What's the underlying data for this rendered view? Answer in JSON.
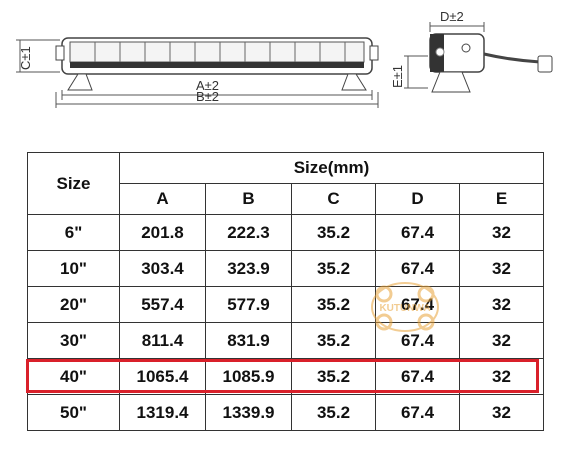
{
  "drawing": {
    "labels": {
      "a": "A±2",
      "b": "B±2",
      "c": "C±1",
      "d": "D±2",
      "e": "E±1"
    }
  },
  "table": {
    "size_header": "Size",
    "group_header": "Size(mm)",
    "columns": [
      "A",
      "B",
      "C",
      "D",
      "E"
    ],
    "rows": [
      {
        "size": "6\"",
        "values": [
          "201.8",
          "222.3",
          "35.2",
          "67.4",
          "32"
        ]
      },
      {
        "size": "10\"",
        "values": [
          "303.4",
          "323.9",
          "35.2",
          "67.4",
          "32"
        ]
      },
      {
        "size": "20\"",
        "values": [
          "557.4",
          "577.9",
          "35.2",
          "67.4",
          "32"
        ]
      },
      {
        "size": "30\"",
        "values": [
          "811.4",
          "831.9",
          "35.2",
          "67.4",
          "32"
        ]
      },
      {
        "size": "40\"",
        "values": [
          "1065.4",
          "1085.9",
          "35.2",
          "67.4",
          "32"
        ]
      },
      {
        "size": "50\"",
        "values": [
          "1319.4",
          "1339.9",
          "35.2",
          "67.4",
          "32"
        ]
      }
    ],
    "highlighted_row": 4,
    "highlight_color": "#d9202a"
  },
  "watermark": {
    "text": "KUTUNWA"
  }
}
